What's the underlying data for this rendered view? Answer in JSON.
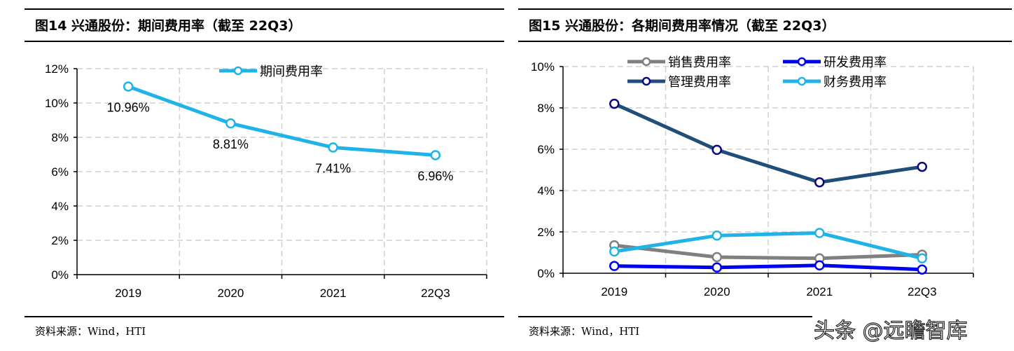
{
  "left": {
    "title": "图14  兴通股份：期间费用率（截至 22Q3）",
    "source": "资料来源：Wind，HTI"
  },
  "right": {
    "title": "图15  兴通股份：各期间费用率情况（截至 22Q3）",
    "source": "资料来源：Wind，HTI"
  },
  "watermark": "头条 @远瞻智库",
  "chart_data": [
    {
      "type": "line",
      "categories": [
        "2019",
        "2020",
        "2021",
        "22Q3"
      ],
      "series": [
        {
          "name": "期间费用率",
          "values": [
            10.96,
            8.81,
            7.41,
            6.96
          ],
          "color": "#1FB3E8",
          "labels": [
            "10.96%",
            "8.81%",
            "7.41%",
            "6.96%"
          ]
        }
      ],
      "ylim": [
        0,
        12
      ],
      "yticks": [
        "0%",
        "2%",
        "4%",
        "6%",
        "8%",
        "10%",
        "12%"
      ],
      "grid": true,
      "legend": "top-center"
    },
    {
      "type": "line",
      "categories": [
        "2019",
        "2020",
        "2021",
        "22Q3"
      ],
      "series": [
        {
          "name": "销售费用率",
          "values": [
            1.35,
            0.78,
            0.72,
            0.9
          ],
          "color": "#808080",
          "marker": "#808080"
        },
        {
          "name": "研发费用率",
          "values": [
            0.35,
            0.28,
            0.38,
            0.18
          ],
          "color": "#0000F0",
          "marker": "#0000F0"
        },
        {
          "name": "管理费用率",
          "values": [
            8.2,
            5.97,
            4.4,
            5.15
          ],
          "color": "#1F4E79",
          "marker": "#0A0A80"
        },
        {
          "name": "财务费用率",
          "values": [
            1.05,
            1.82,
            1.95,
            0.72
          ],
          "color": "#1FB3E8",
          "marker": "#1FB3E8"
        }
      ],
      "ylim": [
        0,
        10
      ],
      "yticks": [
        "0%",
        "2%",
        "4%",
        "6%",
        "8%",
        "10%"
      ],
      "grid": true,
      "legend": "top"
    }
  ]
}
